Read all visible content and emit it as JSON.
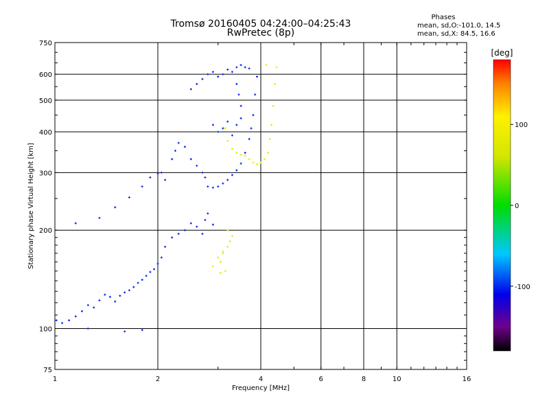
{
  "chart_data": {
    "type": "scatter",
    "title": "Tromsø 20160405 04:24:00–04:25:43",
    "subtitle": "RwPretec (8p)",
    "xlabel": "Frequency [MHz]",
    "ylabel": "Stationary phase Virtual Height [km]",
    "xscale": "log",
    "yscale": "log",
    "xlim": [
      1,
      16
    ],
    "ylim": [
      75,
      750
    ],
    "x_ticks": [
      "1",
      "2",
      "4",
      "6",
      "8",
      "10",
      "16"
    ],
    "y_ticks": [
      "75",
      "100",
      "200",
      "300",
      "400",
      "500",
      "600",
      "750"
    ],
    "grid": true,
    "stats": {
      "heading": "Phases",
      "o_line": "mean, sd,O:-101.0, 14.5",
      "x_line": "mean, sd,X:  84.5, 16.6"
    },
    "colorbar": {
      "label": "[deg]",
      "range": [
        -180,
        180
      ],
      "ticks": [
        "100",
        "0",
        "-100"
      ],
      "colormap": "rainbow (black→purple→blue→cyan→green→yellow→orange→red)"
    },
    "series": [
      {
        "name": "O",
        "phase": -101,
        "points": [
          [
            1.01,
            106
          ],
          [
            1.05,
            104
          ],
          [
            1.1,
            106
          ],
          [
            1.15,
            109
          ],
          [
            1.2,
            113
          ],
          [
            1.25,
            118
          ],
          [
            1.3,
            116
          ],
          [
            1.35,
            122
          ],
          [
            1.4,
            127
          ],
          [
            1.45,
            125
          ],
          [
            1.5,
            121
          ],
          [
            1.55,
            126
          ],
          [
            1.6,
            129
          ],
          [
            1.65,
            131
          ],
          [
            1.7,
            134
          ],
          [
            1.75,
            138
          ],
          [
            1.8,
            141
          ],
          [
            1.85,
            145
          ],
          [
            1.9,
            149
          ],
          [
            1.95,
            152
          ],
          [
            2.0,
            158
          ],
          [
            2.05,
            165
          ],
          [
            2.1,
            178
          ],
          [
            2.2,
            190
          ],
          [
            2.3,
            195
          ],
          [
            2.4,
            200
          ],
          [
            2.5,
            210
          ],
          [
            2.6,
            205
          ],
          [
            2.7,
            195
          ],
          [
            2.75,
            215
          ],
          [
            2.8,
            225
          ],
          [
            2.9,
            208
          ],
          [
            1.15,
            210
          ],
          [
            1.35,
            218
          ],
          [
            1.5,
            235
          ],
          [
            1.65,
            252
          ],
          [
            1.8,
            272
          ],
          [
            1.9,
            290
          ],
          [
            2.0,
            298
          ],
          [
            2.05,
            300
          ],
          [
            2.1,
            285
          ],
          [
            2.2,
            330
          ],
          [
            2.25,
            350
          ],
          [
            2.3,
            370
          ],
          [
            2.4,
            360
          ],
          [
            2.5,
            330
          ],
          [
            2.6,
            315
          ],
          [
            2.7,
            300
          ],
          [
            2.75,
            290
          ],
          [
            2.8,
            272
          ],
          [
            2.9,
            270
          ],
          [
            3.0,
            272
          ],
          [
            3.1,
            278
          ],
          [
            3.2,
            285
          ],
          [
            3.3,
            295
          ],
          [
            3.4,
            305
          ],
          [
            3.5,
            320
          ],
          [
            3.6,
            345
          ],
          [
            3.7,
            380
          ],
          [
            3.75,
            410
          ],
          [
            3.8,
            450
          ],
          [
            3.85,
            520
          ],
          [
            3.9,
            590
          ],
          [
            2.5,
            540
          ],
          [
            2.6,
            560
          ],
          [
            2.7,
            580
          ],
          [
            2.8,
            600
          ],
          [
            2.9,
            610
          ],
          [
            3.0,
            590
          ],
          [
            3.1,
            600
          ],
          [
            3.2,
            620
          ],
          [
            3.3,
            610
          ],
          [
            3.4,
            630
          ],
          [
            3.5,
            640
          ],
          [
            3.6,
            630
          ],
          [
            3.7,
            625
          ],
          [
            2.9,
            420
          ],
          [
            3.0,
            400
          ],
          [
            3.1,
            410
          ],
          [
            3.2,
            430
          ],
          [
            3.3,
            390
          ],
          [
            3.4,
            420
          ],
          [
            3.5,
            440
          ],
          [
            3.5,
            480
          ],
          [
            3.45,
            520
          ],
          [
            3.4,
            560
          ],
          [
            1.6,
            98
          ],
          [
            1.8,
            99
          ],
          [
            1.25,
            100
          ]
        ]
      },
      {
        "name": "X",
        "phase": 84.5,
        "points": [
          [
            3.15,
            410
          ],
          [
            3.2,
            375
          ],
          [
            3.3,
            355
          ],
          [
            3.4,
            345
          ],
          [
            3.5,
            340
          ],
          [
            3.6,
            338
          ],
          [
            3.7,
            330
          ],
          [
            3.8,
            322
          ],
          [
            3.9,
            318
          ],
          [
            4.0,
            322
          ],
          [
            4.1,
            330
          ],
          [
            4.2,
            345
          ],
          [
            4.25,
            380
          ],
          [
            4.3,
            420
          ],
          [
            4.35,
            480
          ],
          [
            4.4,
            560
          ],
          [
            4.45,
            630
          ],
          [
            4.15,
            640
          ],
          [
            3.2,
            200
          ],
          [
            3.3,
            192
          ],
          [
            3.25,
            185
          ],
          [
            3.2,
            178
          ],
          [
            3.1,
            170
          ],
          [
            3.05,
            160
          ],
          [
            2.9,
            155
          ],
          [
            3.0,
            165
          ],
          [
            3.1,
            172
          ],
          [
            3.15,
            150
          ],
          [
            3.05,
            148
          ]
        ]
      }
    ]
  }
}
